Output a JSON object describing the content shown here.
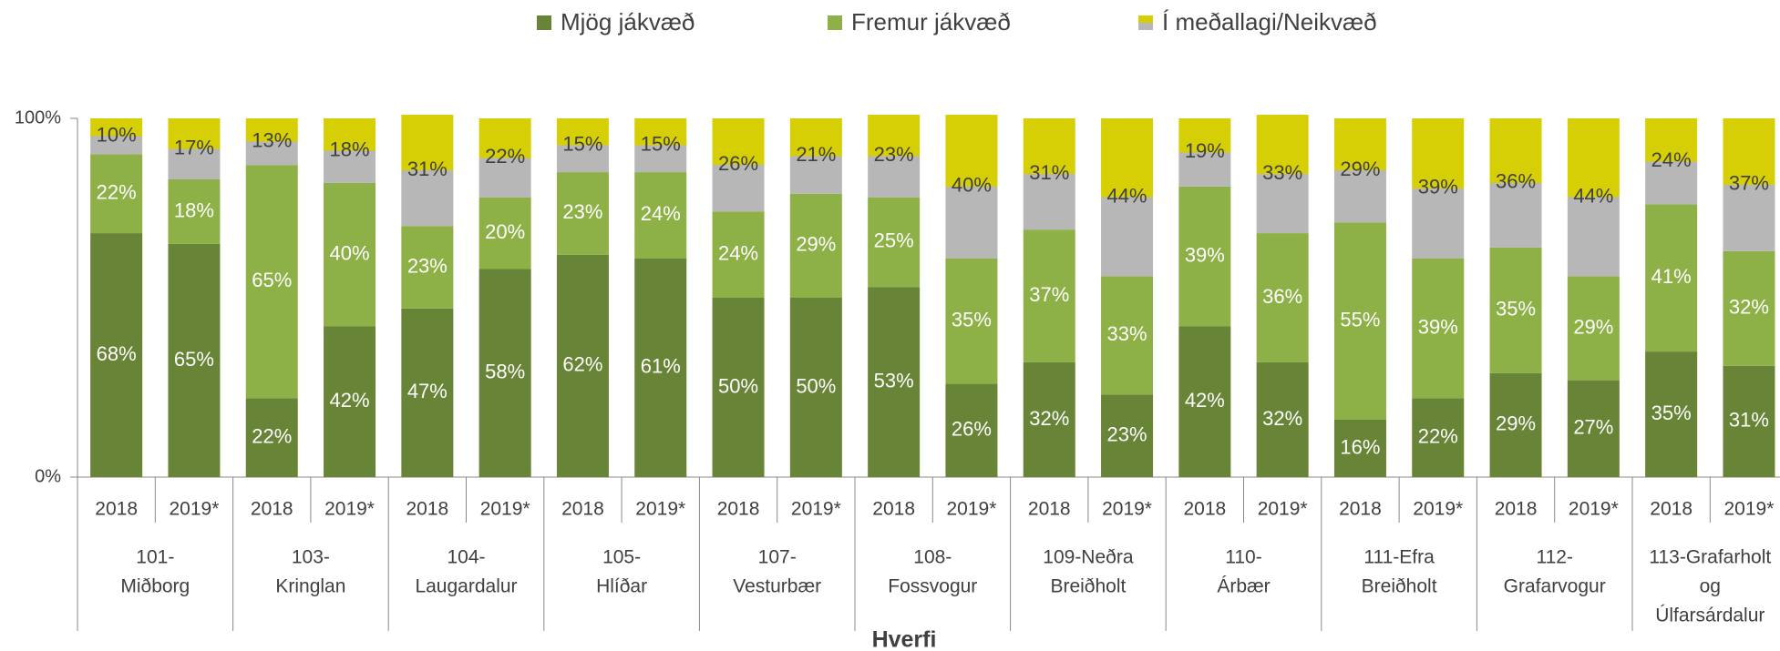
{
  "chart_data": {
    "type": "stacked_bar",
    "x_label": "Hverfi",
    "categories": [
      "2018",
      "2019*",
      "2018",
      "2019*",
      "2018",
      "2019*",
      "2018",
      "2019*",
      "2018",
      "2019*",
      "2018",
      "2019*",
      "2018",
      "2019*",
      "2018",
      "2019*",
      "2018",
      "2019*",
      "2018",
      "2019*",
      "2018",
      "2019*"
    ],
    "groups": [
      [
        "101-",
        "Miðborg"
      ],
      [
        "103-",
        "Kringlan"
      ],
      [
        "104-",
        "Laugardalur"
      ],
      [
        "105-",
        "Hlíðar"
      ],
      [
        "107-",
        "Vesturbær"
      ],
      [
        "108-",
        "Fossvogur"
      ],
      [
        "109-Neðra",
        "Breiðholt"
      ],
      [
        "110-",
        "Árbær"
      ],
      [
        "111-Efra",
        "Breiðholt"
      ],
      [
        "112-",
        "Grafarvogur"
      ],
      [
        "113-Grafarholt",
        "og",
        "Úlfarsárdalur"
      ]
    ],
    "series": [
      {
        "name": "Mjög jákvæð",
        "color": "#688436",
        "label_color": "#ffffff",
        "values": [
          68,
          65,
          22,
          42,
          47,
          58,
          62,
          61,
          50,
          50,
          53,
          26,
          32,
          23,
          42,
          32,
          16,
          22,
          29,
          27,
          35,
          31
        ],
        "value_labels": [
          "68%",
          "65%",
          "22%",
          "42%",
          "47%",
          "58%",
          "62%",
          "61%",
          "50%",
          "50%",
          "53%",
          "26%",
          "32%",
          "23%",
          "42%",
          "32%",
          "16%",
          "22%",
          "29%",
          "27%",
          "35%",
          "31%"
        ]
      },
      {
        "name": "Fremur jákvæð",
        "color": "#8db146",
        "label_color": "#ffffff",
        "values": [
          22,
          18,
          65,
          40,
          23,
          20,
          23,
          24,
          24,
          29,
          25,
          35,
          37,
          33,
          39,
          36,
          55,
          39,
          35,
          29,
          41,
          32
        ],
        "value_labels": [
          "22%",
          "18%",
          "65%",
          "40%",
          "23%",
          "20%",
          "23%",
          "24%",
          "24%",
          "29%",
          "25%",
          "35%",
          "37%",
          "33%",
          "39%",
          "36%",
          "55%",
          "39%",
          "35%",
          "29%",
          "41%",
          "32%"
        ]
      },
      {
        "name": "Í meðallagi/Neikvæð",
        "color": [
          "#d6cf05",
          "#b7b7b7"
        ],
        "label_color": "#404040",
        "values": [
          10,
          17,
          13,
          18,
          31,
          22,
          15,
          15,
          26,
          21,
          23,
          40,
          31,
          44,
          19,
          33,
          29,
          39,
          36,
          44,
          24,
          37
        ],
        "value_labels": [
          "10%",
          "17%",
          "13%",
          "18%",
          "31%",
          "22%",
          "15%",
          "15%",
          "26%",
          "21%",
          "23%",
          "40%",
          "31%",
          "44%",
          "19%",
          "33%",
          "29%",
          "39%",
          "36%",
          "44%",
          "24%",
          "37%"
        ]
      }
    ],
    "ylim": [
      0,
      100
    ],
    "yticks": [
      {
        "value": 0,
        "label": "0%"
      },
      {
        "value": 100,
        "label": "100%"
      }
    ],
    "legend": "top"
  }
}
